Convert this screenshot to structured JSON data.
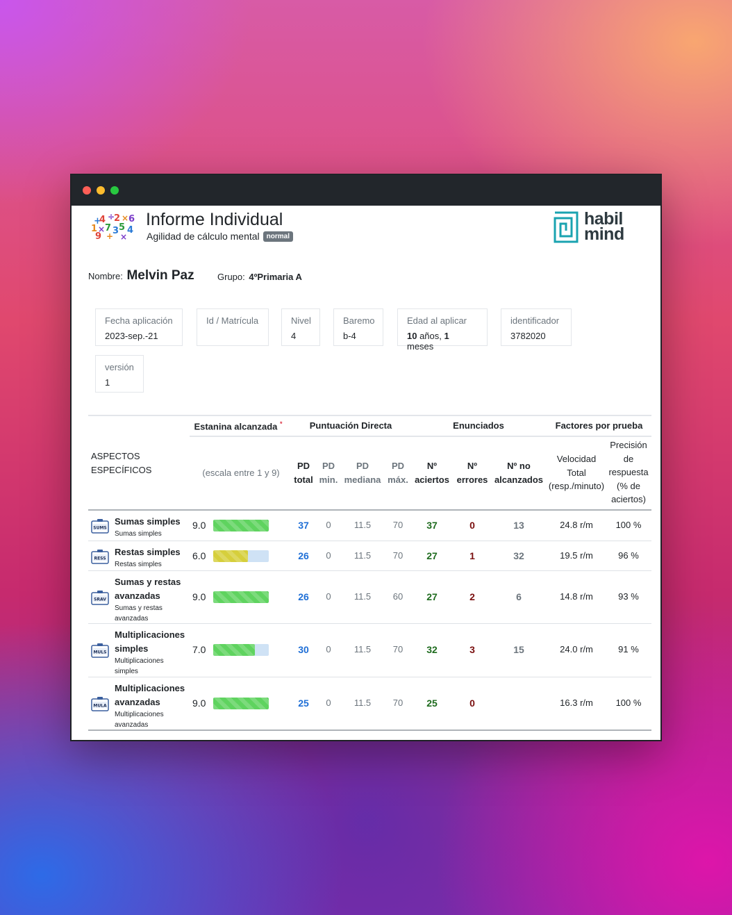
{
  "header": {
    "title": "Informe Individual",
    "subtitle": "Agilidad de cálculo mental",
    "badge": "normal",
    "brand_line1": "habil",
    "brand_line2": "mind"
  },
  "student": {
    "name_label": "Nombre:",
    "name": "Melvin Paz",
    "group_label": "Grupo:",
    "group": "4ºPrimaria A"
  },
  "info_cards": [
    {
      "label": "Fecha aplicación",
      "value": "2023-sep.-21"
    },
    {
      "label": "Id / Matrícula",
      "value": ""
    },
    {
      "label": "Nivel",
      "value": "4"
    },
    {
      "label": "Baremo",
      "value": "b-4"
    },
    {
      "label": "Edad al aplicar",
      "years": "10",
      "years_unit": " años, ",
      "months": "1",
      "months_unit": " meses"
    },
    {
      "label": "identificador",
      "value": "3782020"
    },
    {
      "label": "versión",
      "value": "1"
    }
  ],
  "table": {
    "group_headers": {
      "estanina": "Estanina alcanzada",
      "estanina_mark": "*",
      "pd": "Puntuación Directa",
      "enunciados": "Enunciados",
      "factores": "Factores por prueba"
    },
    "col_aspectos": "ASPECTOS ESPECÍFICOS",
    "col_escala": "(escala entre 1 y 9)",
    "col_pd_total": "PD total",
    "col_pd_min": "PD min.",
    "col_pd_mediana": "PD mediana",
    "col_pd_max": "PD máx.",
    "col_aciertos": "Nº aciertos",
    "col_errores": "Nº errores",
    "col_no_alcanzados": "Nº no alcanzados",
    "col_velocidad": "Velocidad Total (resp./minuto)",
    "col_precision": "Precisión de respuesta (% de aciertos)",
    "rows": [
      {
        "icon": "SUMS",
        "title": "Sumas simples",
        "sub": "Sumas simples",
        "stanine": "9.0",
        "stanine_fraction": 1.0,
        "bar_color": "#5fd35f",
        "pd_total": "37",
        "pd_min": "0",
        "pd_median": "11.5",
        "pd_max": "70",
        "aciertos": "37",
        "errores": "0",
        "no_alcanzados": "13",
        "velocidad": "24.8 r/m",
        "precision": "100 %"
      },
      {
        "icon": "RESS",
        "title": "Restas simples",
        "sub": "Restas simples",
        "stanine": "6.0",
        "stanine_fraction": 0.625,
        "bar_color": "#d6cf3c",
        "pd_total": "26",
        "pd_min": "0",
        "pd_median": "11.5",
        "pd_max": "70",
        "aciertos": "27",
        "errores": "1",
        "no_alcanzados": "32",
        "velocidad": "19.5 r/m",
        "precision": "96 %"
      },
      {
        "icon": "SRAV",
        "title": "Sumas y restas avanzadas",
        "sub": "Sumas y restas avanzadas",
        "stanine": "9.0",
        "stanine_fraction": 1.0,
        "bar_color": "#5fd35f",
        "pd_total": "26",
        "pd_min": "0",
        "pd_median": "11.5",
        "pd_max": "60",
        "aciertos": "27",
        "errores": "2",
        "no_alcanzados": "6",
        "velocidad": "14.8 r/m",
        "precision": "93 %"
      },
      {
        "icon": "MULS",
        "title": "Multiplicaciones simples",
        "sub": "Multiplicaciones simples",
        "stanine": "7.0",
        "stanine_fraction": 0.75,
        "bar_color": "#5fd35f",
        "pd_total": "30",
        "pd_min": "0",
        "pd_median": "11.5",
        "pd_max": "70",
        "aciertos": "32",
        "errores": "3",
        "no_alcanzados": "15",
        "velocidad": "24.0 r/m",
        "precision": "91 %"
      },
      {
        "icon": "MULA",
        "title": "Multiplicaciones avanzadas",
        "sub": "Multiplicaciones avanzadas",
        "stanine": "9.0",
        "stanine_fraction": 1.0,
        "bar_color": "#5fd35f",
        "pd_total": "25",
        "pd_min": "0",
        "pd_median": "11.5",
        "pd_max": "70",
        "aciertos": "25",
        "errores": "0",
        "no_alcanzados": "",
        "velocidad": "16.3 r/m",
        "precision": "100 %"
      }
    ]
  }
}
